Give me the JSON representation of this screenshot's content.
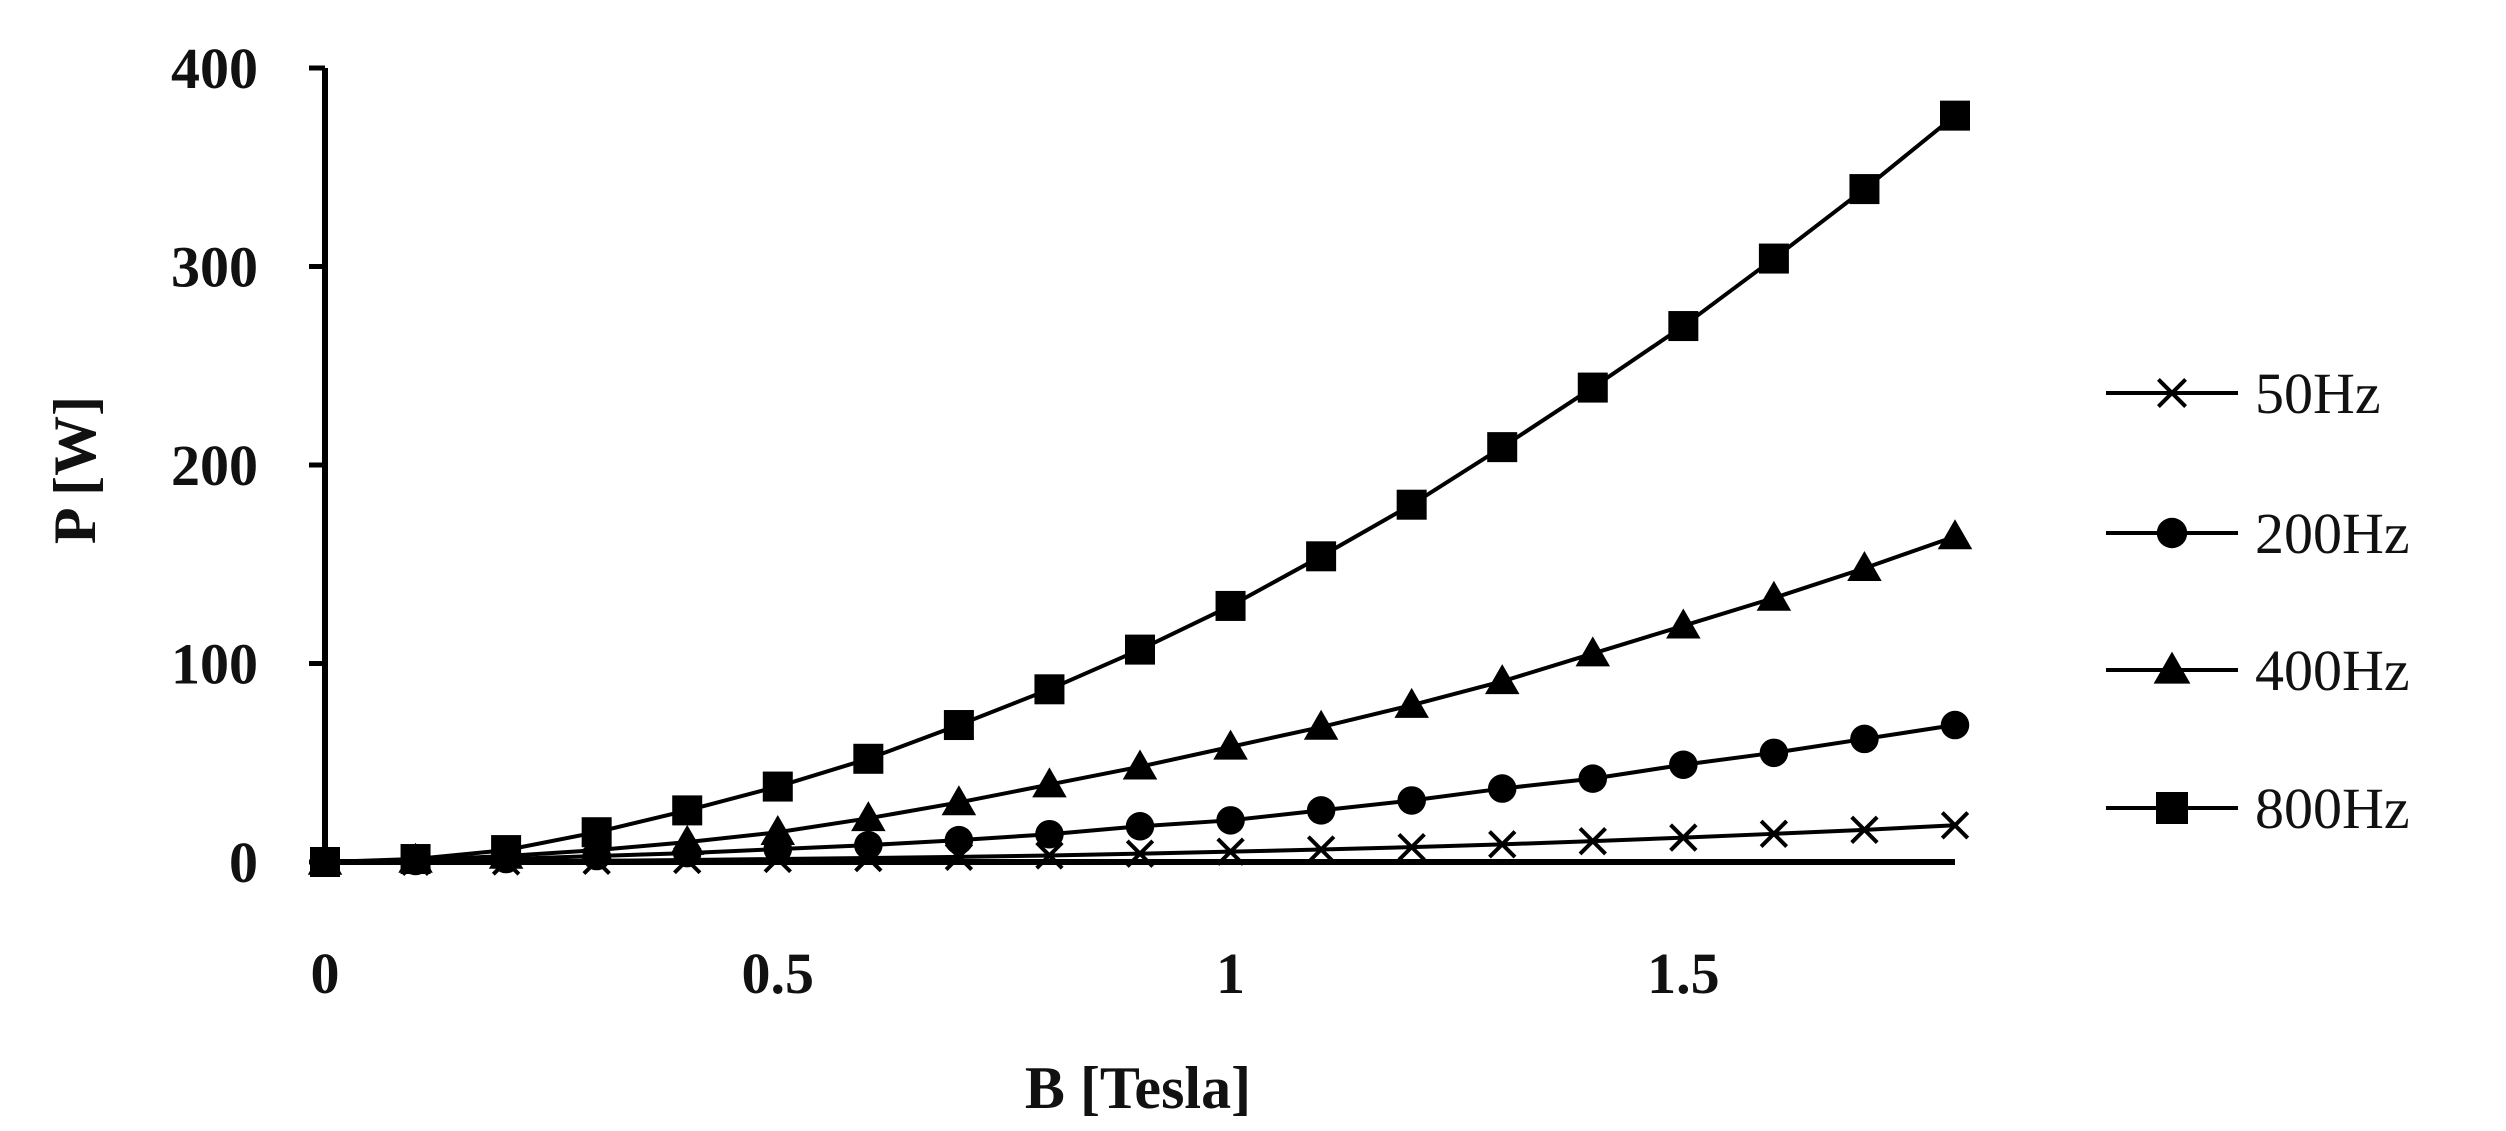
{
  "chart_data": {
    "type": "line",
    "title": "",
    "xlabel": "B [Tesla]",
    "ylabel": "P [W]",
    "xlim": [
      0,
      1.8
    ],
    "ylim": [
      0,
      400
    ],
    "x_ticks": [
      "0",
      "0.5",
      "1",
      "1.5"
    ],
    "y_ticks": [
      "0",
      "100",
      "200",
      "300",
      "400"
    ],
    "grid": false,
    "legend_position": "right",
    "x": [
      0,
      0.1,
      0.2,
      0.3,
      0.4,
      0.5,
      0.6,
      0.7,
      0.8,
      0.9,
      1.0,
      1.1,
      1.2,
      1.3,
      1.4,
      1.5,
      1.6,
      1.7,
      1.8
    ],
    "series": [
      {
        "name": "50Hz",
        "marker": "x",
        "color": "#000000",
        "values": [
          0,
          0.1,
          0.3,
          0.6,
          1,
          1.5,
          2,
          2.6,
          3.3,
          4.2,
          5.2,
          6.3,
          7.5,
          8.9,
          10.5,
          12.3,
          14.2,
          16.2,
          18.5
        ]
      },
      {
        "name": "200Hz",
        "marker": "circle",
        "color": "#000000",
        "values": [
          0,
          0.5,
          1.5,
          3,
          4.5,
          6.5,
          8.5,
          11,
          14,
          18,
          21,
          26,
          31,
          37,
          42,
          49,
          55,
          62,
          69
        ]
      },
      {
        "name": "400Hz",
        "marker": "triangle",
        "color": "#000000",
        "values": [
          0,
          1,
          3,
          6,
          10,
          15,
          22,
          30,
          39,
          48,
          58,
          68,
          79,
          91,
          105,
          119,
          133,
          148,
          164
        ]
      },
      {
        "name": "800Hz",
        "marker": "square",
        "color": "#000000",
        "values": [
          0,
          1.5,
          6,
          15,
          26,
          38,
          52,
          69,
          87,
          107,
          129,
          154,
          180,
          209,
          239,
          270,
          304,
          339,
          376
        ]
      }
    ]
  }
}
